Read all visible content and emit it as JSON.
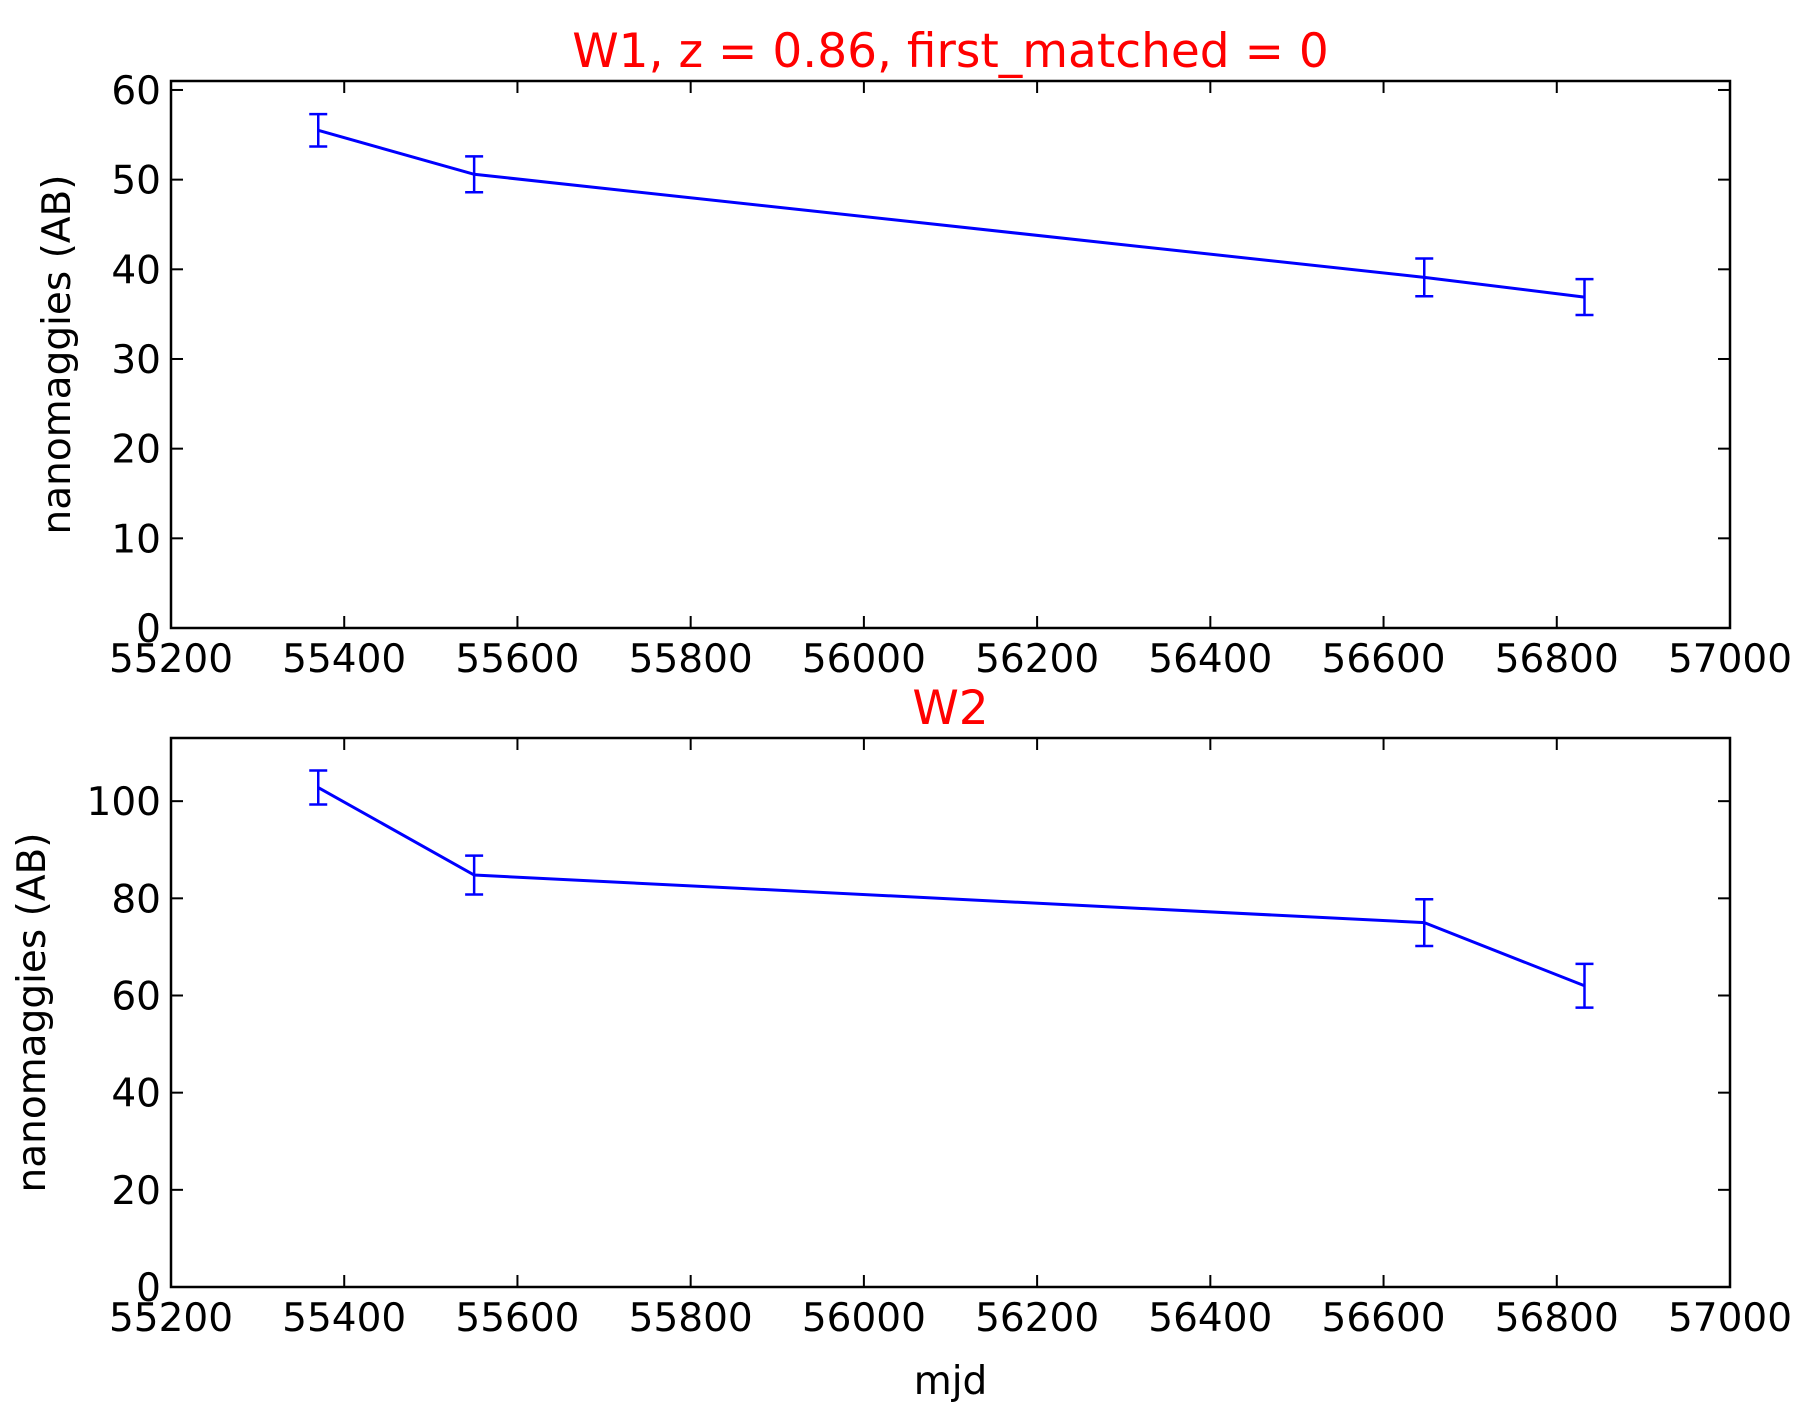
{
  "chart_data": [
    {
      "type": "line",
      "title": "W1, z = 0.86, first_matched = 0",
      "xlabel": "",
      "ylabel": "nanomaggies (AB)",
      "xlim": [
        55200,
        57000
      ],
      "ylim": [
        0,
        61
      ],
      "xticks": [
        55200,
        55400,
        55600,
        55800,
        56000,
        56200,
        56400,
        56600,
        56800,
        57000
      ],
      "yticks": [
        0,
        10,
        20,
        30,
        40,
        50,
        60
      ],
      "grid": false,
      "colors": {
        "line": "#0000ff",
        "title": "#ff0000"
      },
      "series": [
        {
          "x": [
            55370,
            55550,
            56647,
            56832
          ],
          "y": [
            55.5,
            50.6,
            39.1,
            36.9
          ],
          "yerr": [
            1.8,
            2.0,
            2.1,
            2.0
          ]
        }
      ]
    },
    {
      "type": "line",
      "title": "W2",
      "xlabel": "mjd",
      "ylabel": "nanomaggies (AB)",
      "xlim": [
        55200,
        57000
      ],
      "ylim": [
        0,
        113
      ],
      "xticks": [
        55200,
        55400,
        55600,
        55800,
        56000,
        56200,
        56400,
        56600,
        56800,
        57000
      ],
      "yticks": [
        0,
        20,
        40,
        60,
        80,
        100
      ],
      "grid": false,
      "colors": {
        "line": "#0000ff",
        "title": "#ff0000"
      },
      "series": [
        {
          "x": [
            55370,
            55550,
            56647,
            56832
          ],
          "y": [
            102.8,
            84.8,
            75.0,
            62.0
          ],
          "yerr": [
            3.5,
            4.0,
            4.8,
            4.5
          ]
        }
      ]
    }
  ]
}
